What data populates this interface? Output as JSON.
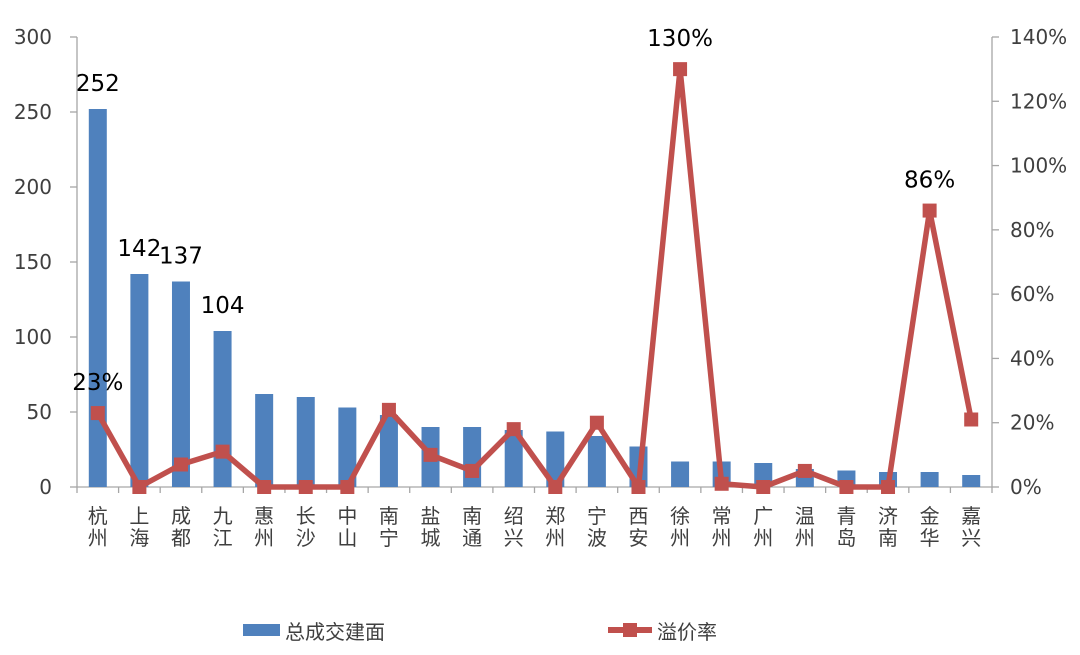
{
  "chart_data": {
    "type": "combo",
    "categories": [
      "杭州",
      "上海",
      "成都",
      "九江",
      "惠州",
      "长沙",
      "中山",
      "南宁",
      "盐城",
      "南通",
      "绍兴",
      "郑州",
      "宁波",
      "西安",
      "徐州",
      "常州",
      "广州",
      "温州",
      "青岛",
      "济南",
      "金华",
      "嘉兴"
    ],
    "series": [
      {
        "name": "总成交建面",
        "type": "bar",
        "axis": "left",
        "color": "#4F81BD",
        "values": [
          252,
          142,
          137,
          104,
          62,
          60,
          53,
          48,
          40,
          40,
          38,
          37,
          34,
          27,
          17,
          17,
          16,
          12,
          11,
          10,
          10,
          8
        ],
        "value_labels": {
          "0": "252",
          "1": "142",
          "2": "137",
          "3": "104"
        }
      },
      {
        "name": "溢价率",
        "type": "line",
        "axis": "right",
        "color": "#C0504D",
        "unit": "%",
        "values": [
          23,
          0,
          7,
          11,
          0,
          0,
          0,
          24,
          10,
          5,
          18,
          0,
          20,
          0,
          130,
          1,
          0,
          5,
          0,
          0,
          86,
          21
        ],
        "value_labels": {
          "0": "23%",
          "14": "130%",
          "20": "86%"
        }
      }
    ],
    "left_axis": {
      "min": 0,
      "max": 300,
      "step": 50,
      "tick_labels": [
        "0",
        "50",
        "100",
        "150",
        "200",
        "250",
        "300"
      ]
    },
    "right_axis": {
      "min": 0,
      "max": 140,
      "step": 20,
      "tick_labels": [
        "0%",
        "20%",
        "40%",
        "60%",
        "80%",
        "100%",
        "120%",
        "140%"
      ]
    },
    "grid": false,
    "legend_position": "bottom",
    "title": "",
    "colors": {
      "bar": "#4F81BD",
      "line": "#C0504D",
      "axis": "#A6A6A6",
      "tick_text": "#3f3f3f",
      "data_label_text": "#000000",
      "background": "#ffffff"
    }
  }
}
